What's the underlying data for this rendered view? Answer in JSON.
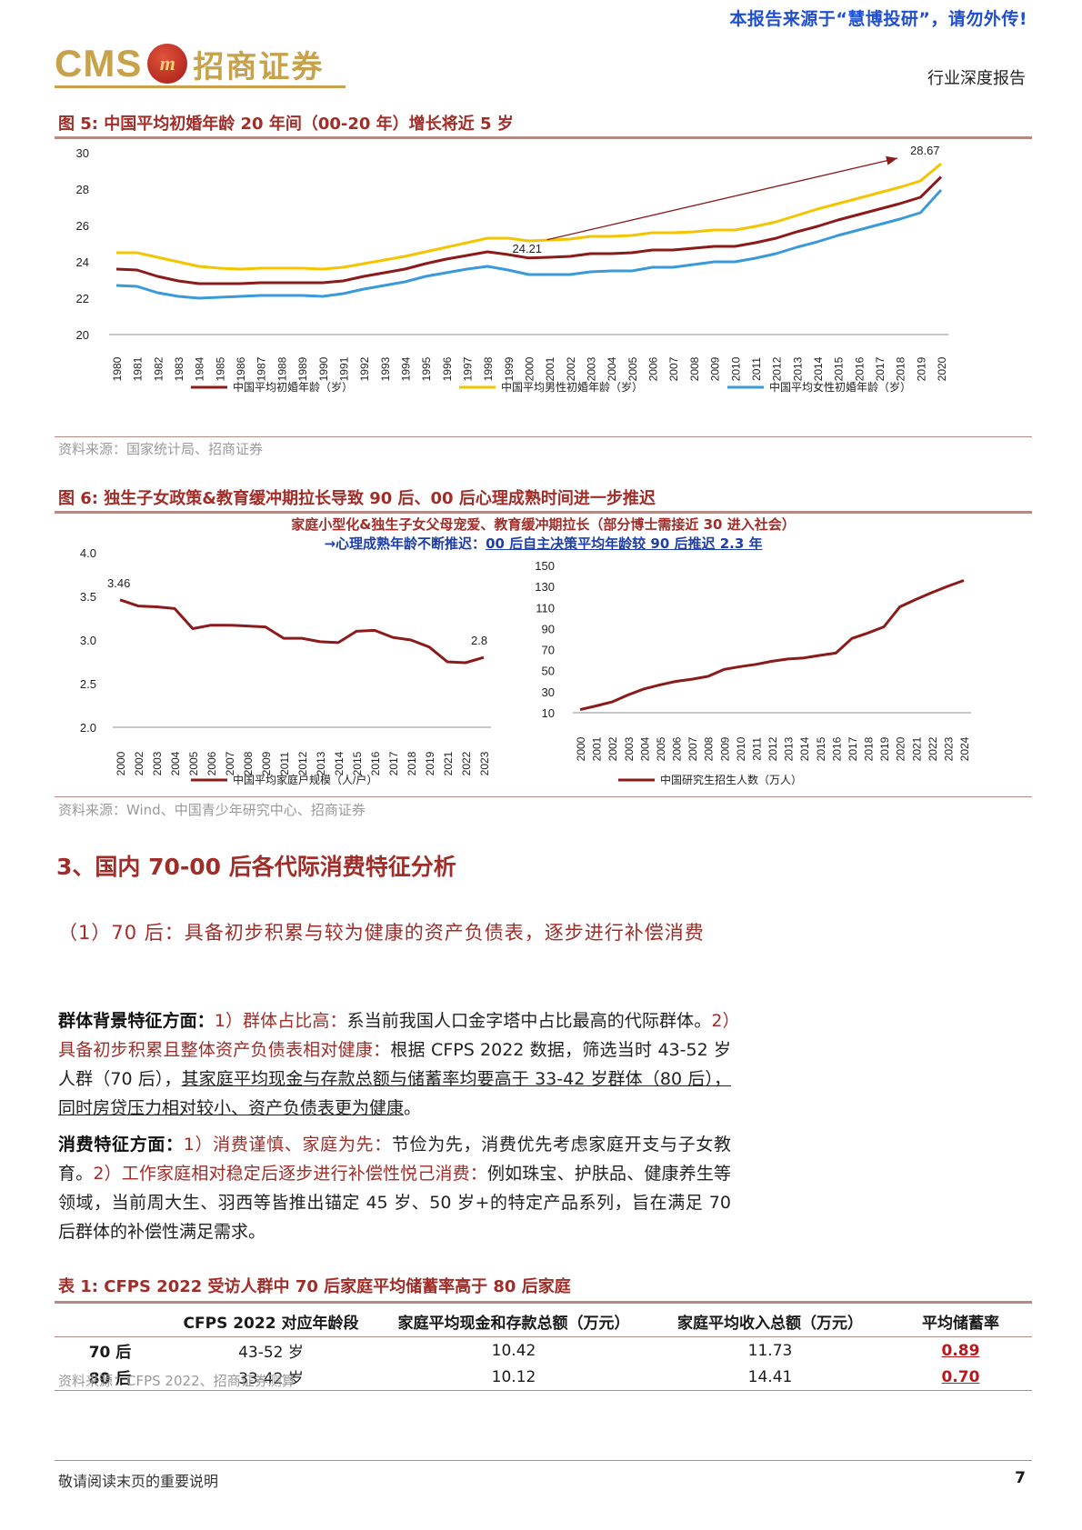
{
  "header": {
    "watermark": "本报告来源于“慧博投研”，请勿外传!",
    "logo_cms": "CMS",
    "logo_badge": "m",
    "logo_cn": "招商证券",
    "report_type": "行业深度报告"
  },
  "figure5": {
    "title": "图 5: 中国平均初婚年龄 20 年间（00-20 年）增长将近 5 岁",
    "source": "资料来源：国家统计局、招商证券",
    "annotations": {
      "start": "24.21",
      "end": "28.67"
    },
    "colors": {
      "total": "#8b1a1a",
      "male": "#f2c500",
      "female": "#3a9ad9"
    },
    "chart_data": {
      "type": "line",
      "x": [
        1980,
        1981,
        1982,
        1983,
        1984,
        1985,
        1986,
        1987,
        1988,
        1989,
        1990,
        1991,
        1992,
        1993,
        1994,
        1995,
        1996,
        1997,
        1998,
        1999,
        2000,
        2001,
        2002,
        2003,
        2004,
        2005,
        2006,
        2007,
        2008,
        2009,
        2010,
        2011,
        2012,
        2013,
        2014,
        2015,
        2016,
        2017,
        2018,
        2019,
        2020
      ],
      "ylim": [
        20,
        30
      ],
      "yticks": [
        "30",
        "28",
        "26",
        "24",
        "22",
        "20"
      ],
      "series": [
        {
          "name": "中国平均初婚年龄（岁）",
          "values": [
            23.6,
            23.55,
            23.2,
            22.95,
            22.8,
            22.8,
            22.8,
            22.85,
            22.85,
            22.85,
            22.85,
            22.95,
            23.2,
            23.4,
            23.6,
            23.9,
            24.15,
            24.35,
            24.55,
            24.4,
            24.21,
            24.25,
            24.3,
            24.45,
            24.45,
            24.5,
            24.65,
            24.65,
            24.75,
            24.85,
            24.85,
            25.05,
            25.3,
            25.65,
            25.95,
            26.3,
            26.6,
            26.9,
            27.2,
            27.55,
            28.67
          ]
        },
        {
          "name": "中国平均男性初婚年龄（岁）",
          "values": [
            24.5,
            24.5,
            24.25,
            24.0,
            23.75,
            23.65,
            23.6,
            23.65,
            23.65,
            23.65,
            23.6,
            23.7,
            23.9,
            24.1,
            24.3,
            24.55,
            24.8,
            25.05,
            25.3,
            25.3,
            25.15,
            25.2,
            25.25,
            25.4,
            25.4,
            25.45,
            25.6,
            25.6,
            25.65,
            25.75,
            25.75,
            25.95,
            26.2,
            26.55,
            26.9,
            27.2,
            27.5,
            27.8,
            28.1,
            28.45,
            29.4
          ]
        },
        {
          "name": "中国平均女性初婚年龄（岁）",
          "values": [
            22.7,
            22.65,
            22.3,
            22.1,
            22.0,
            22.05,
            22.1,
            22.15,
            22.15,
            22.15,
            22.1,
            22.25,
            22.5,
            22.7,
            22.9,
            23.2,
            23.4,
            23.6,
            23.75,
            23.55,
            23.3,
            23.3,
            23.3,
            23.45,
            23.5,
            23.5,
            23.7,
            23.7,
            23.85,
            24.0,
            24.0,
            24.2,
            24.45,
            24.8,
            25.1,
            25.45,
            25.75,
            26.05,
            26.35,
            26.7,
            27.95
          ]
        }
      ]
    }
  },
  "figure6": {
    "title": "图 6: 独生子女政策&教育缓冲期拉长导致 90 后、00 后心理成熟时间进一步推迟",
    "subtitle1": "家庭小型化&独生子女父母宠爱、教育缓冲期拉长（部分博士需接近 30 进入社会）",
    "subtitle2_prefix": "→心理成熟年龄不断推迟：",
    "subtitle2_highlight": "00 后自主决策平均年龄较 90 后推迟 2.3 年",
    "source": "资料来源：Wind、中国青少年研究中心、招商证券",
    "annotations": {
      "left_start": "3.46",
      "left_end": "2.8"
    },
    "colors": {
      "line": "#8b1a1a",
      "subtitle1": "#a02d28",
      "subtitle2": "#1f3fa8"
    },
    "chart_data": [
      {
        "type": "line",
        "x": [
          "2000",
          "2002",
          "2003",
          "2004",
          "2005",
          "2006",
          "2007",
          "2008",
          "2009",
          "2011",
          "2012",
          "2013",
          "2014",
          "2015",
          "2016",
          "2017",
          "2018",
          "2019",
          "2021",
          "2022",
          "2023"
        ],
        "ylim": [
          2.0,
          4.0
        ],
        "yticks": [
          "4.0",
          "3.5",
          "3.0",
          "2.5",
          "2.0"
        ],
        "series": [
          {
            "name": "中国平均家庭户规模（人/户）",
            "values": [
              3.46,
              3.39,
              3.38,
              3.36,
              3.13,
              3.17,
              3.17,
              3.16,
              3.15,
              3.02,
              3.02,
              2.98,
              2.97,
              3.1,
              3.11,
              3.03,
              3.0,
              2.92,
              2.75,
              2.74,
              2.8
            ]
          }
        ]
      },
      {
        "type": "line",
        "x": [
          "2000",
          "2001",
          "2002",
          "2003",
          "2004",
          "2005",
          "2006",
          "2007",
          "2008",
          "2009",
          "2010",
          "2011",
          "2012",
          "2013",
          "2014",
          "2015",
          "2016",
          "2017",
          "2018",
          "2019",
          "2020",
          "2021",
          "2022",
          "2023",
          "2024"
        ],
        "ylim": [
          10,
          150
        ],
        "yticks": [
          "150",
          "130",
          "110",
          "90",
          "70",
          "50",
          "30",
          "10"
        ],
        "series": [
          {
            "name": "中国研究生招生人数（万人）",
            "values": [
              12.9,
              16.5,
              20.3,
              26.9,
              32.6,
              36.5,
              39.8,
              41.9,
              44.6,
              51.1,
              53.8,
              56.0,
              58.9,
              61.1,
              62.1,
              64.5,
              66.7,
              80.6,
              85.8,
              91.7,
              110.7,
              117.7,
              124.2,
              130.2,
              135.7
            ]
          }
        ]
      }
    ]
  },
  "section3": {
    "heading": "3、国内 70-00 后各代际消费特征分析",
    "subheading": "（1）70 后：具备初步积累与较为健康的资产负债表，逐步进行补偿消费",
    "p1": {
      "label": "群体背景特征方面：",
      "r1": "1）群体占比高：",
      "t1": "系当前我国人口金字塔中占比最高的代际群体。",
      "r2": "2）具备初步积累且整体资产负债表相对健康：",
      "t2": "根据 CFPS 2022 数据，筛选当时 43-52 岁人群（70 后），",
      "u1": "其家庭平均现金与存款总额与储蓄率均要高于 33-42 岁群体（80 后），同时房贷压力相对较小、资产负债表更为健康",
      "t3": "。"
    },
    "p2": {
      "label": "消费特征方面：",
      "r1": "1）消费谨慎、家庭为先：",
      "t1": "节俭为先，消费优先考虑家庭开支与子女教育。",
      "r2": "2）工作家庭相对稳定后逐步进行补偿性悦己消费：",
      "t2": "例如珠宝、护肤品、健康养生等领域，当前周大生、羽西等皆推出锚定 45 岁、50 岁+的特定产品系列，旨在满足 70 后群体的补偿性满足需求。"
    }
  },
  "table1": {
    "title": "表 1: CFPS 2022 受访人群中 70 后家庭平均储蓄率高于 80 后家庭",
    "headers": [
      "",
      "CFPS 2022 对应年龄段",
      "家庭平均现金和存款总额（万元）",
      "家庭平均收入总额（万元）",
      "平均储蓄率"
    ],
    "rows": [
      [
        "70 后",
        "43-52 岁",
        "10.42",
        "11.73",
        "0.89"
      ],
      [
        "80 后",
        "33-42 岁",
        "10.12",
        "14.41",
        "0.70"
      ]
    ],
    "source": "资料来源：CFPS 2022、招商证券测算"
  },
  "footer": {
    "note": "敬请阅读末页的重要说明",
    "page": "7"
  }
}
